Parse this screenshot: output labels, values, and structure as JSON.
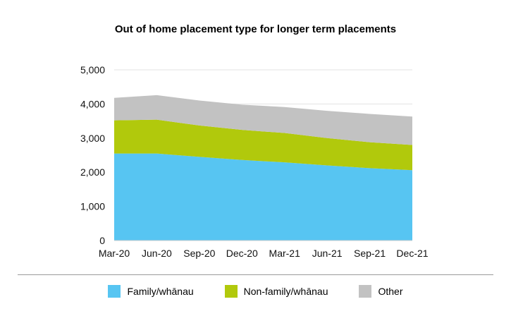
{
  "chart_data": {
    "type": "area",
    "stacked": true,
    "title": "Out of home placement type for longer term placements",
    "xlabel": "",
    "ylabel": "",
    "ylim": [
      0,
      5000
    ],
    "yticks": [
      "0",
      "1,000",
      "2,000",
      "3,000",
      "4,000",
      "5,000"
    ],
    "ytick_values": [
      0,
      1000,
      2000,
      3000,
      4000,
      5000
    ],
    "x": [
      "Mar-20",
      "Jun-20",
      "Sep-20",
      "Dec-20",
      "Mar-21",
      "Jun-21",
      "Sep-21",
      "Dec-21"
    ],
    "grid": true,
    "legend_position": "bottom",
    "series": [
      {
        "name": "Family/whānau",
        "color": "#57c5f2",
        "values": [
          2550,
          2550,
          2450,
          2360,
          2290,
          2200,
          2120,
          2060
        ]
      },
      {
        "name": "Non-family/whānau",
        "color": "#b1c90c",
        "values": [
          970,
          990,
          920,
          880,
          860,
          800,
          760,
          740
        ]
      },
      {
        "name": "Other",
        "color": "#c2c2c2",
        "values": [
          660,
          720,
          730,
          740,
          760,
          800,
          830,
          830
        ]
      }
    ]
  }
}
